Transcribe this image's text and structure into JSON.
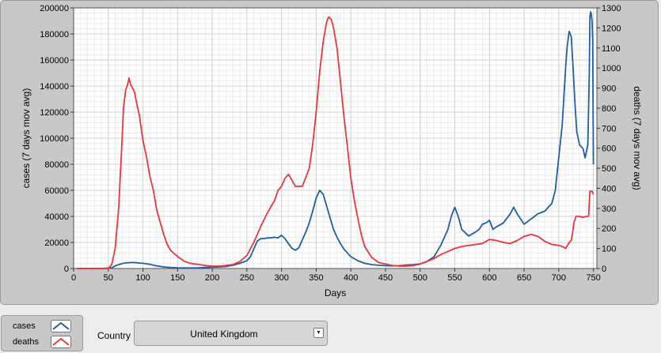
{
  "chart_data": {
    "type": "line",
    "xlabel": "Days",
    "ylabel": "cases  (7 days mov avg)",
    "y2label": "deaths  (7 days mov avg)",
    "xlim": [
      0,
      755
    ],
    "ylim": [
      0,
      200000
    ],
    "y2lim": [
      0,
      1300
    ],
    "xticks": [
      0,
      50,
      100,
      150,
      200,
      250,
      300,
      350,
      400,
      450,
      500,
      550,
      600,
      650,
      700,
      750
    ],
    "yticks": [
      0,
      20000,
      40000,
      60000,
      80000,
      100000,
      120000,
      140000,
      160000,
      180000,
      200000
    ],
    "y2ticks": [
      0,
      100,
      200,
      300,
      400,
      500,
      600,
      700,
      800,
      900,
      1000,
      1100,
      1200,
      1300
    ],
    "grid": true,
    "colors": {
      "cases": "#1f5fa3",
      "deaths": "#e8383d"
    },
    "series": [
      {
        "name": "cases",
        "axis": "left",
        "color": "#1f5fa3",
        "x": [
          5,
          40,
          55,
          60,
          65,
          70,
          75,
          80,
          85,
          90,
          95,
          100,
          110,
          120,
          130,
          140,
          150,
          160,
          170,
          180,
          190,
          200,
          210,
          220,
          230,
          240,
          250,
          255,
          260,
          265,
          270,
          275,
          280,
          285,
          290,
          295,
          300,
          305,
          310,
          315,
          320,
          325,
          330,
          335,
          340,
          345,
          350,
          355,
          360,
          365,
          370,
          375,
          380,
          385,
          390,
          395,
          400,
          410,
          420,
          430,
          440,
          450,
          460,
          470,
          480,
          490,
          500,
          510,
          520,
          530,
          535,
          540,
          545,
          550,
          555,
          560,
          570,
          580,
          585,
          590,
          595,
          600,
          605,
          610,
          620,
          630,
          635,
          640,
          645,
          650,
          655,
          660,
          665,
          670,
          680,
          685,
          690,
          695,
          700,
          705,
          710,
          712,
          715,
          718,
          720,
          723,
          726,
          730,
          735,
          738,
          740,
          742,
          744,
          745,
          746,
          747,
          748,
          749,
          750
        ],
        "values": [
          0,
          0,
          500,
          2000,
          3000,
          3800,
          4300,
          4500,
          4600,
          4500,
          4200,
          4000,
          3200,
          2000,
          1200,
          700,
          500,
          400,
          400,
          500,
          800,
          1000,
          1200,
          1500,
          2500,
          4000,
          6000,
          9000,
          15000,
          21000,
          23000,
          23000,
          23500,
          23500,
          24000,
          23500,
          25500,
          23000,
          19000,
          15500,
          14000,
          16000,
          22000,
          28000,
          35000,
          44000,
          54000,
          60000,
          57000,
          48000,
          39000,
          30000,
          24000,
          19000,
          15000,
          12000,
          9000,
          6000,
          4000,
          3000,
          2500,
          2200,
          2000,
          2200,
          2600,
          3000,
          3500,
          5500,
          9000,
          18000,
          24000,
          30000,
          40000,
          47000,
          40000,
          30000,
          25000,
          28000,
          30000,
          34000,
          35000,
          37000,
          30000,
          32000,
          35000,
          42000,
          47000,
          42000,
          38000,
          34000,
          36000,
          38000,
          40000,
          42000,
          44000,
          47000,
          50000,
          60000,
          85000,
          110000,
          155000,
          170000,
          182000,
          178000,
          160000,
          130000,
          105000,
          95000,
          92000,
          85000,
          90000,
          95000,
          150000,
          193000,
          197000,
          195000,
          190000,
          175000,
          80000
        ]
      },
      {
        "name": "deaths",
        "axis": "right",
        "color": "#e8383d",
        "x": [
          5,
          50,
          55,
          60,
          65,
          70,
          72,
          75,
          78,
          80,
          82,
          85,
          88,
          90,
          95,
          100,
          105,
          110,
          115,
          120,
          125,
          130,
          135,
          140,
          150,
          160,
          170,
          180,
          190,
          200,
          210,
          220,
          230,
          240,
          250,
          260,
          270,
          280,
          290,
          295,
          300,
          305,
          310,
          315,
          320,
          330,
          340,
          345,
          350,
          355,
          360,
          365,
          368,
          372,
          375,
          380,
          385,
          390,
          395,
          400,
          405,
          410,
          415,
          420,
          430,
          440,
          450,
          460,
          470,
          480,
          490,
          500,
          510,
          520,
          530,
          540,
          550,
          560,
          570,
          580,
          590,
          600,
          610,
          620,
          630,
          640,
          650,
          660,
          670,
          680,
          690,
          700,
          705,
          710,
          715,
          718,
          720,
          722,
          725,
          730,
          735,
          740,
          743,
          745,
          748,
          750
        ],
        "values": [
          0,
          0,
          20,
          100,
          300,
          650,
          800,
          890,
          920,
          950,
          920,
          900,
          880,
          840,
          760,
          640,
          560,
          460,
          390,
          290,
          230,
          170,
          120,
          90,
          60,
          35,
          25,
          20,
          15,
          12,
          12,
          15,
          20,
          35,
          65,
          130,
          210,
          280,
          340,
          390,
          410,
          450,
          470,
          440,
          410,
          410,
          500,
          620,
          780,
          980,
          1130,
          1230,
          1255,
          1240,
          1200,
          1100,
          930,
          760,
          610,
          450,
          340,
          250,
          170,
          110,
          55,
          30,
          22,
          15,
          12,
          12,
          15,
          22,
          35,
          50,
          70,
          85,
          100,
          110,
          115,
          120,
          125,
          145,
          140,
          130,
          125,
          140,
          160,
          170,
          160,
          135,
          120,
          115,
          110,
          100,
          130,
          140,
          180,
          230,
          260,
          260,
          255,
          260,
          260,
          385,
          385,
          370
        ]
      }
    ]
  },
  "legend": {
    "items": [
      {
        "label": "cases",
        "color": "#1f5fa3"
      },
      {
        "label": "deaths",
        "color": "#e8383d"
      }
    ]
  },
  "controls": {
    "country_label": "Country",
    "country_value": "United Kingdom"
  }
}
